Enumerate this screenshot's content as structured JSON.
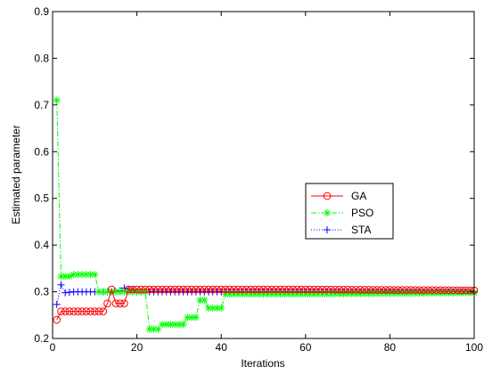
{
  "chart_data": {
    "type": "line",
    "title": "",
    "xlabel": "Iterations",
    "ylabel": "Estimated parameter",
    "xlim": [
      0,
      100
    ],
    "ylim": [
      0.2,
      0.9
    ],
    "xticks": [
      0,
      20,
      40,
      60,
      80,
      100
    ],
    "yticks": [
      0.2,
      0.3,
      0.4,
      0.5,
      0.6,
      0.7,
      0.8,
      0.9
    ],
    "grid": false,
    "legend_position": "right",
    "series": [
      {
        "name": "GA",
        "color": "#ff0000",
        "line_style": "solid",
        "marker": "circle",
        "points": [
          [
            1,
            0.24
          ],
          [
            2,
            0.258
          ],
          [
            12,
            0.258
          ],
          [
            13,
            0.275
          ],
          [
            14,
            0.305
          ],
          [
            15,
            0.275
          ],
          [
            17,
            0.275
          ],
          [
            18,
            0.305
          ],
          [
            40,
            0.305
          ],
          [
            60,
            0.305
          ],
          [
            100,
            0.303
          ]
        ]
      },
      {
        "name": "PSO",
        "color": "#00ff00",
        "line_style": "dashdot",
        "marker": "star",
        "points": [
          [
            1,
            0.71
          ],
          [
            2,
            0.333
          ],
          [
            4,
            0.333
          ],
          [
            5,
            0.337
          ],
          [
            10,
            0.337
          ],
          [
            11,
            0.3
          ],
          [
            22,
            0.3
          ],
          [
            23,
            0.22
          ],
          [
            25,
            0.22
          ],
          [
            26,
            0.23
          ],
          [
            31,
            0.23
          ],
          [
            32,
            0.245
          ],
          [
            34,
            0.245
          ],
          [
            35,
            0.282
          ],
          [
            36,
            0.282
          ],
          [
            37,
            0.265
          ],
          [
            40,
            0.265
          ],
          [
            41,
            0.295
          ],
          [
            60,
            0.295
          ],
          [
            100,
            0.298
          ]
        ]
      },
      {
        "name": "STA",
        "color": "#0000ff",
        "line_style": "dotted",
        "marker": "plus",
        "points": [
          [
            1,
            0.273
          ],
          [
            2,
            0.315
          ],
          [
            3,
            0.298
          ],
          [
            5,
            0.3
          ],
          [
            15,
            0.3
          ],
          [
            16,
            0.302
          ],
          [
            17,
            0.308
          ],
          [
            20,
            0.3
          ],
          [
            100,
            0.3
          ]
        ]
      }
    ]
  }
}
